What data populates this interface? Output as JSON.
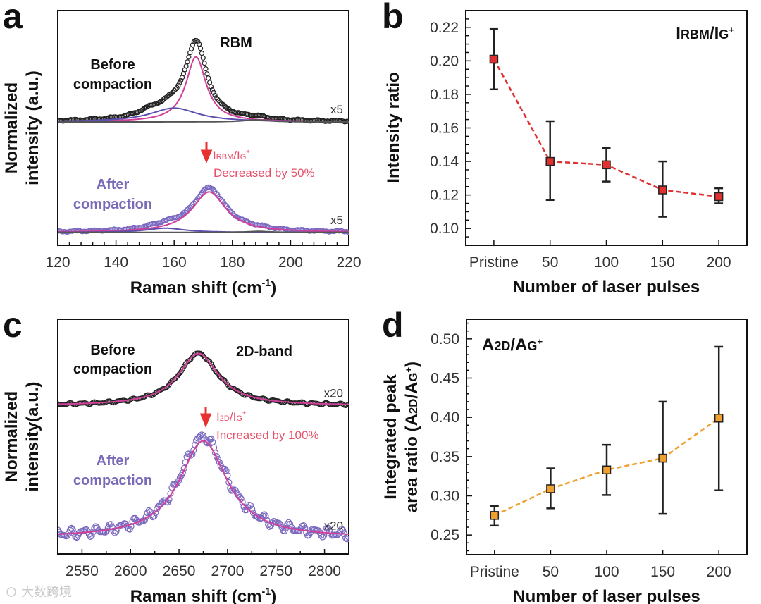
{
  "panel_labels": [
    "a",
    "b",
    "c",
    "d"
  ],
  "watermark": "大数跨境",
  "colors": {
    "before_markers": "#222222",
    "after_markers": "#7a68c0",
    "fit_main": "#d0409a",
    "fit_component": "#5b4fb0",
    "fit_minor": "#555555",
    "annotation_red": "#e8506a",
    "arrow_red": "#e83030",
    "series_b": "#e03030",
    "series_d": "#f0a030"
  },
  "chart_data": [
    {
      "panel": "a",
      "type": "line",
      "title": "RBM",
      "xlabel_parts": [
        "Raman shift (cm",
        "-1",
        ")"
      ],
      "ylabel_lines": [
        "Normalized",
        "intensity (a.u.)"
      ],
      "xlim": [
        120,
        220
      ],
      "xticks": [
        120,
        140,
        160,
        180,
        200,
        220
      ],
      "ylim": [
        0,
        2.2
      ],
      "series": [
        {
          "name_lines": [
            "Before",
            "compaction"
          ],
          "scale_label": "x5",
          "offset": 1.156,
          "components": [
            {
              "role": "main",
              "center": 167.5,
              "hwhm": 4.2,
              "amp": 0.61
            },
            {
              "role": "component",
              "center": 160,
              "hwhm": 10,
              "amp": 0.13
            },
            {
              "role": "minor",
              "center": 188,
              "hwhm": 5,
              "amp": 0.02
            }
          ],
          "data_extra": [
            {
              "center": 168.5,
              "hwhm": 4,
              "amp": 0.08
            },
            {
              "center": 151,
              "hwhm": 4,
              "amp": 0.03
            }
          ],
          "noise": 0.004
        },
        {
          "name_lines": [
            "After",
            "compaction"
          ],
          "scale_label": "x5",
          "offset": 0.12,
          "components": [
            {
              "role": "main",
              "center": 172,
              "hwhm": 7,
              "amp": 0.38
            },
            {
              "role": "component",
              "center": 157,
              "hwhm": 8,
              "amp": 0.04
            },
            {
              "role": "minor",
              "center": 189,
              "hwhm": 5,
              "amp": 0.01
            }
          ],
          "data_extra": [
            {
              "center": 172.5,
              "hwhm": 6,
              "amp": 0.03
            }
          ],
          "noise": 0.004
        }
      ],
      "annotation": {
        "ratio_parts": [
          "I",
          "RBM",
          "/I",
          "G",
          "+"
        ],
        "text": "Decreased by 50%"
      }
    },
    {
      "panel": "b",
      "type": "line",
      "title_parts": [
        "I",
        "RBM",
        "/I",
        "G",
        "+"
      ],
      "xlabel": "Number of laser pulses",
      "ylabel": "Intensity ratio",
      "categories": [
        "Pristine",
        "50",
        "100",
        "150",
        "200"
      ],
      "values": [
        0.201,
        0.14,
        0.138,
        0.123,
        0.119
      ],
      "err_low": [
        0.183,
        0.117,
        0.128,
        0.107,
        0.115
      ],
      "err_high": [
        0.219,
        0.164,
        0.148,
        0.14,
        0.124
      ],
      "ylim": [
        0.09,
        0.23
      ],
      "yticks": [
        "0.10",
        "0.12",
        "0.14",
        "0.16",
        "0.18",
        "0.20",
        "0.22"
      ]
    },
    {
      "panel": "c",
      "type": "line",
      "title": "2D-band",
      "xlabel_parts": [
        "Raman shift (cm",
        "-1",
        ")"
      ],
      "ylabel_lines": [
        "Normalized",
        "intensity(a.u.)"
      ],
      "xlim": [
        2525,
        2825
      ],
      "xticks": [
        2550,
        2600,
        2650,
        2700,
        2750,
        2800
      ],
      "ylim": [
        0,
        2.2
      ],
      "series": [
        {
          "name_lines": [
            "Before",
            "compaction"
          ],
          "scale_label": "x20",
          "offset": 1.39,
          "components": [
            {
              "role": "main",
              "center": 2670,
              "hwhm": 25,
              "amp": 0.49
            }
          ],
          "data_extra": [],
          "noise": 0.006
        },
        {
          "name_lines": [
            "After",
            "compaction"
          ],
          "scale_label": "x20",
          "offset": 0.15,
          "components": [
            {
              "role": "main",
              "center": 2675,
              "hwhm": 30,
              "amp": 0.91
            }
          ],
          "data_extra": [
            {
              "center": 2675,
              "hwhm": 28,
              "amp": 0.04
            }
          ],
          "noise": 0.025
        }
      ],
      "annotation": {
        "ratio_parts": [
          "I",
          "2D",
          "/I",
          "G",
          "+"
        ],
        "text": "Increased by 100%"
      }
    },
    {
      "panel": "d",
      "type": "line",
      "title_parts": [
        "A",
        "2D",
        "/A",
        "G",
        "+"
      ],
      "xlabel": "Number of laser pulses",
      "ylabel_lines": [
        "Integrated peak",
        "area ratio (A2D/AG+)"
      ],
      "ylabel_parts": [
        "area ratio (A",
        "2D",
        "/A",
        "G",
        "+",
        ")"
      ],
      "categories": [
        "Pristine",
        "50",
        "100",
        "150",
        "200"
      ],
      "values": [
        0.275,
        0.309,
        0.333,
        0.348,
        0.399
      ],
      "err_low": [
        0.262,
        0.284,
        0.301,
        0.277,
        0.307
      ],
      "err_high": [
        0.287,
        0.335,
        0.365,
        0.42,
        0.49
      ],
      "ylim": [
        0.225,
        0.525
      ],
      "yticks": [
        "0.25",
        "0.30",
        "0.35",
        "0.40",
        "0.45",
        "0.50"
      ]
    }
  ]
}
